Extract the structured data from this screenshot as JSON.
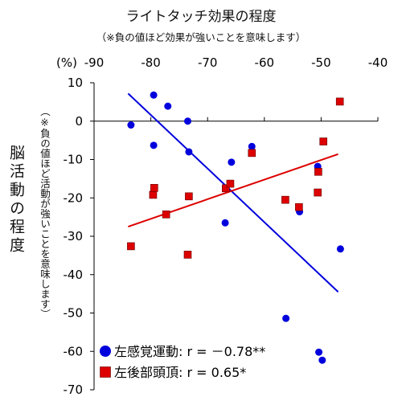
{
  "chart_data": {
    "type": "scatter",
    "title": "ライトタッチ効果の程度",
    "subtitle": "（※負の値ほど効果が強いことを意味します）",
    "x_unit_label": "(%)",
    "ylabel": "脳活動の程度",
    "ylabel_note": "（※負の値ほど活動が強いことを意味します）",
    "xlim": [
      -90,
      -40
    ],
    "ylim": [
      -70,
      10
    ],
    "xticks": [
      -90,
      -80,
      -70,
      -60,
      -50,
      -40
    ],
    "yticks": [
      10,
      0,
      -10,
      -20,
      -30,
      -40,
      -50,
      -60,
      -70
    ],
    "grid": false,
    "legend_position": "bottom-left",
    "series": [
      {
        "name": "左感覚運動: r = －0.78**",
        "label": "左感覚運動",
        "stat": "r = －0.78**",
        "marker": "circle",
        "color": "#0000dd",
        "x": [
          -83.5,
          -79.5,
          -79.5,
          -77,
          -73.5,
          -73.3,
          -66.9,
          -65.8,
          -62.2,
          -56.2,
          -53.8,
          -50.6,
          -50.4,
          -49.8,
          -46.6
        ],
        "y": [
          -1,
          6.8,
          -6.3,
          3.9,
          0,
          -8,
          -26.5,
          -10.7,
          -6.6,
          -51.4,
          -23.6,
          -11.8,
          -60.2,
          -62.3,
          -33.3
        ]
      },
      {
        "name": "左後部頭頂: r = 0.65*",
        "label": "左後部頭頂",
        "stat": "r = 0.65*",
        "marker": "square",
        "color": "#dd0000",
        "x": [
          -83.5,
          -79.6,
          -79.4,
          -77.3,
          -73.5,
          -73.3,
          -66.8,
          -66,
          -62.2,
          -56.3,
          -53.9,
          -50.6,
          -50.5,
          -49.6,
          -46.7
        ],
        "y": [
          -32.6,
          -19.2,
          -17.4,
          -24.3,
          -34.8,
          -19.6,
          -17.5,
          -16.3,
          -8.3,
          -20.5,
          -22.4,
          -18.6,
          -13.2,
          -5.3,
          5.1
        ]
      }
    ],
    "trendlines": [
      {
        "series": "左感覚運動",
        "color": "#0000dd",
        "x": [
          -84,
          -47
        ],
        "y": [
          7.2,
          -44.5
        ]
      },
      {
        "series": "左後部頭頂",
        "color": "#dd0000",
        "x": [
          -84,
          -47
        ],
        "y": [
          -27.5,
          -8.6
        ]
      }
    ]
  }
}
